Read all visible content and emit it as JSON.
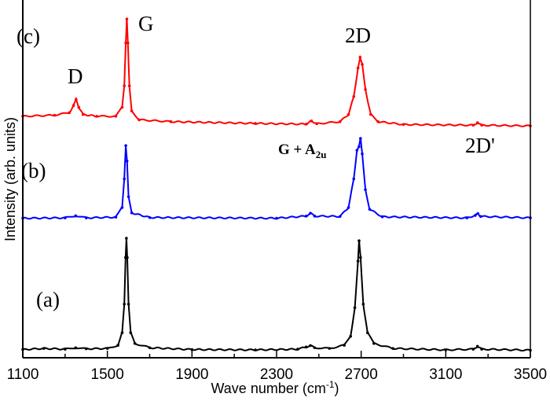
{
  "chart_data": {
    "type": "line",
    "title": "",
    "xlabel": "Wave number (cm",
    "xlabel_sup": "-1",
    "xlabel_end": ")",
    "ylabel": "Intensity (arb. units)",
    "xlim": [
      1100,
      3500
    ],
    "ylim": [
      0,
      100
    ],
    "xticks": [
      "1100",
      "1500",
      "1900",
      "2300",
      "2700",
      "3100",
      "3500"
    ],
    "grid": false,
    "legend": "none",
    "series": [
      {
        "name": "(a)",
        "color": "#000000",
        "points": [
          [
            1100,
            2.3
          ],
          [
            1200,
            2.6
          ],
          [
            1300,
            2.4
          ],
          [
            1350,
            2.8
          ],
          [
            1400,
            2.5
          ],
          [
            1500,
            2.6
          ],
          [
            1550,
            3.5
          ],
          [
            1570,
            7
          ],
          [
            1580,
            15
          ],
          [
            1586,
            28
          ],
          [
            1590,
            33.4
          ],
          [
            1594,
            28
          ],
          [
            1600,
            15
          ],
          [
            1610,
            7
          ],
          [
            1630,
            4
          ],
          [
            1700,
            2.8
          ],
          [
            1900,
            2.3
          ],
          [
            2200,
            2.2
          ],
          [
            2400,
            2.4
          ],
          [
            2440,
            3
          ],
          [
            2460,
            3.4
          ],
          [
            2480,
            2.8
          ],
          [
            2550,
            2.6
          ],
          [
            2620,
            3.5
          ],
          [
            2650,
            6
          ],
          [
            2670,
            14
          ],
          [
            2685,
            27
          ],
          [
            2690,
            32.7
          ],
          [
            2697,
            28
          ],
          [
            2710,
            15
          ],
          [
            2730,
            7
          ],
          [
            2760,
            4
          ],
          [
            2850,
            2.6
          ],
          [
            3100,
            2.2
          ],
          [
            3230,
            2.4
          ],
          [
            3250,
            3.2
          ],
          [
            3270,
            2.4
          ],
          [
            3500,
            2.1
          ]
        ]
      },
      {
        "name": "(b)",
        "color": "#0000ff",
        "points": [
          [
            1100,
            39
          ],
          [
            1300,
            39.1
          ],
          [
            1350,
            39.7
          ],
          [
            1400,
            39.1
          ],
          [
            1540,
            39.3
          ],
          [
            1570,
            42
          ],
          [
            1580,
            50
          ],
          [
            1587,
            59.3
          ],
          [
            1593,
            55
          ],
          [
            1600,
            45
          ],
          [
            1615,
            40.5
          ],
          [
            1700,
            39.2
          ],
          [
            2300,
            39
          ],
          [
            2440,
            39.6
          ],
          [
            2460,
            40.4
          ],
          [
            2480,
            39.6
          ],
          [
            2600,
            39.5
          ],
          [
            2640,
            42
          ],
          [
            2665,
            50
          ],
          [
            2680,
            58
          ],
          [
            2690,
            59
          ],
          [
            2697,
            61.3
          ],
          [
            2705,
            57
          ],
          [
            2720,
            47
          ],
          [
            2740,
            41.5
          ],
          [
            2800,
            39.4
          ],
          [
            3200,
            39.1
          ],
          [
            3240,
            39.8
          ],
          [
            3252,
            40.3
          ],
          [
            3265,
            39.5
          ],
          [
            3500,
            39.1
          ]
        ]
      },
      {
        "name": "(c)",
        "color": "#ff0000",
        "points": [
          [
            1100,
            67.5
          ],
          [
            1250,
            67.8
          ],
          [
            1320,
            68.5
          ],
          [
            1340,
            70.5
          ],
          [
            1352,
            72.2
          ],
          [
            1365,
            70
          ],
          [
            1385,
            68
          ],
          [
            1450,
            67.5
          ],
          [
            1540,
            67.5
          ],
          [
            1570,
            70
          ],
          [
            1580,
            76
          ],
          [
            1587,
            88
          ],
          [
            1592,
            94.7
          ],
          [
            1597,
            88
          ],
          [
            1604,
            76
          ],
          [
            1615,
            69
          ],
          [
            1650,
            66.5
          ],
          [
            1800,
            66
          ],
          [
            2200,
            65.5
          ],
          [
            2440,
            65.3
          ],
          [
            2465,
            66.2
          ],
          [
            2490,
            65.4
          ],
          [
            2600,
            66
          ],
          [
            2640,
            68
          ],
          [
            2665,
            73
          ],
          [
            2685,
            81
          ],
          [
            2695,
            84
          ],
          [
            2705,
            82
          ],
          [
            2720,
            75
          ],
          [
            2745,
            68
          ],
          [
            2780,
            66
          ],
          [
            2900,
            65.2
          ],
          [
            3230,
            65
          ],
          [
            3250,
            65.7
          ],
          [
            3270,
            65
          ],
          [
            3500,
            64.8
          ]
        ]
      }
    ],
    "annotations": {
      "a": "(a)",
      "b": "(b)",
      "c": "(c)",
      "D": "D",
      "G": "G",
      "G_A2u": "G + A",
      "G_A2u_sub": "2u",
      "twoD": "2D",
      "twoDprime": "2D'"
    }
  }
}
